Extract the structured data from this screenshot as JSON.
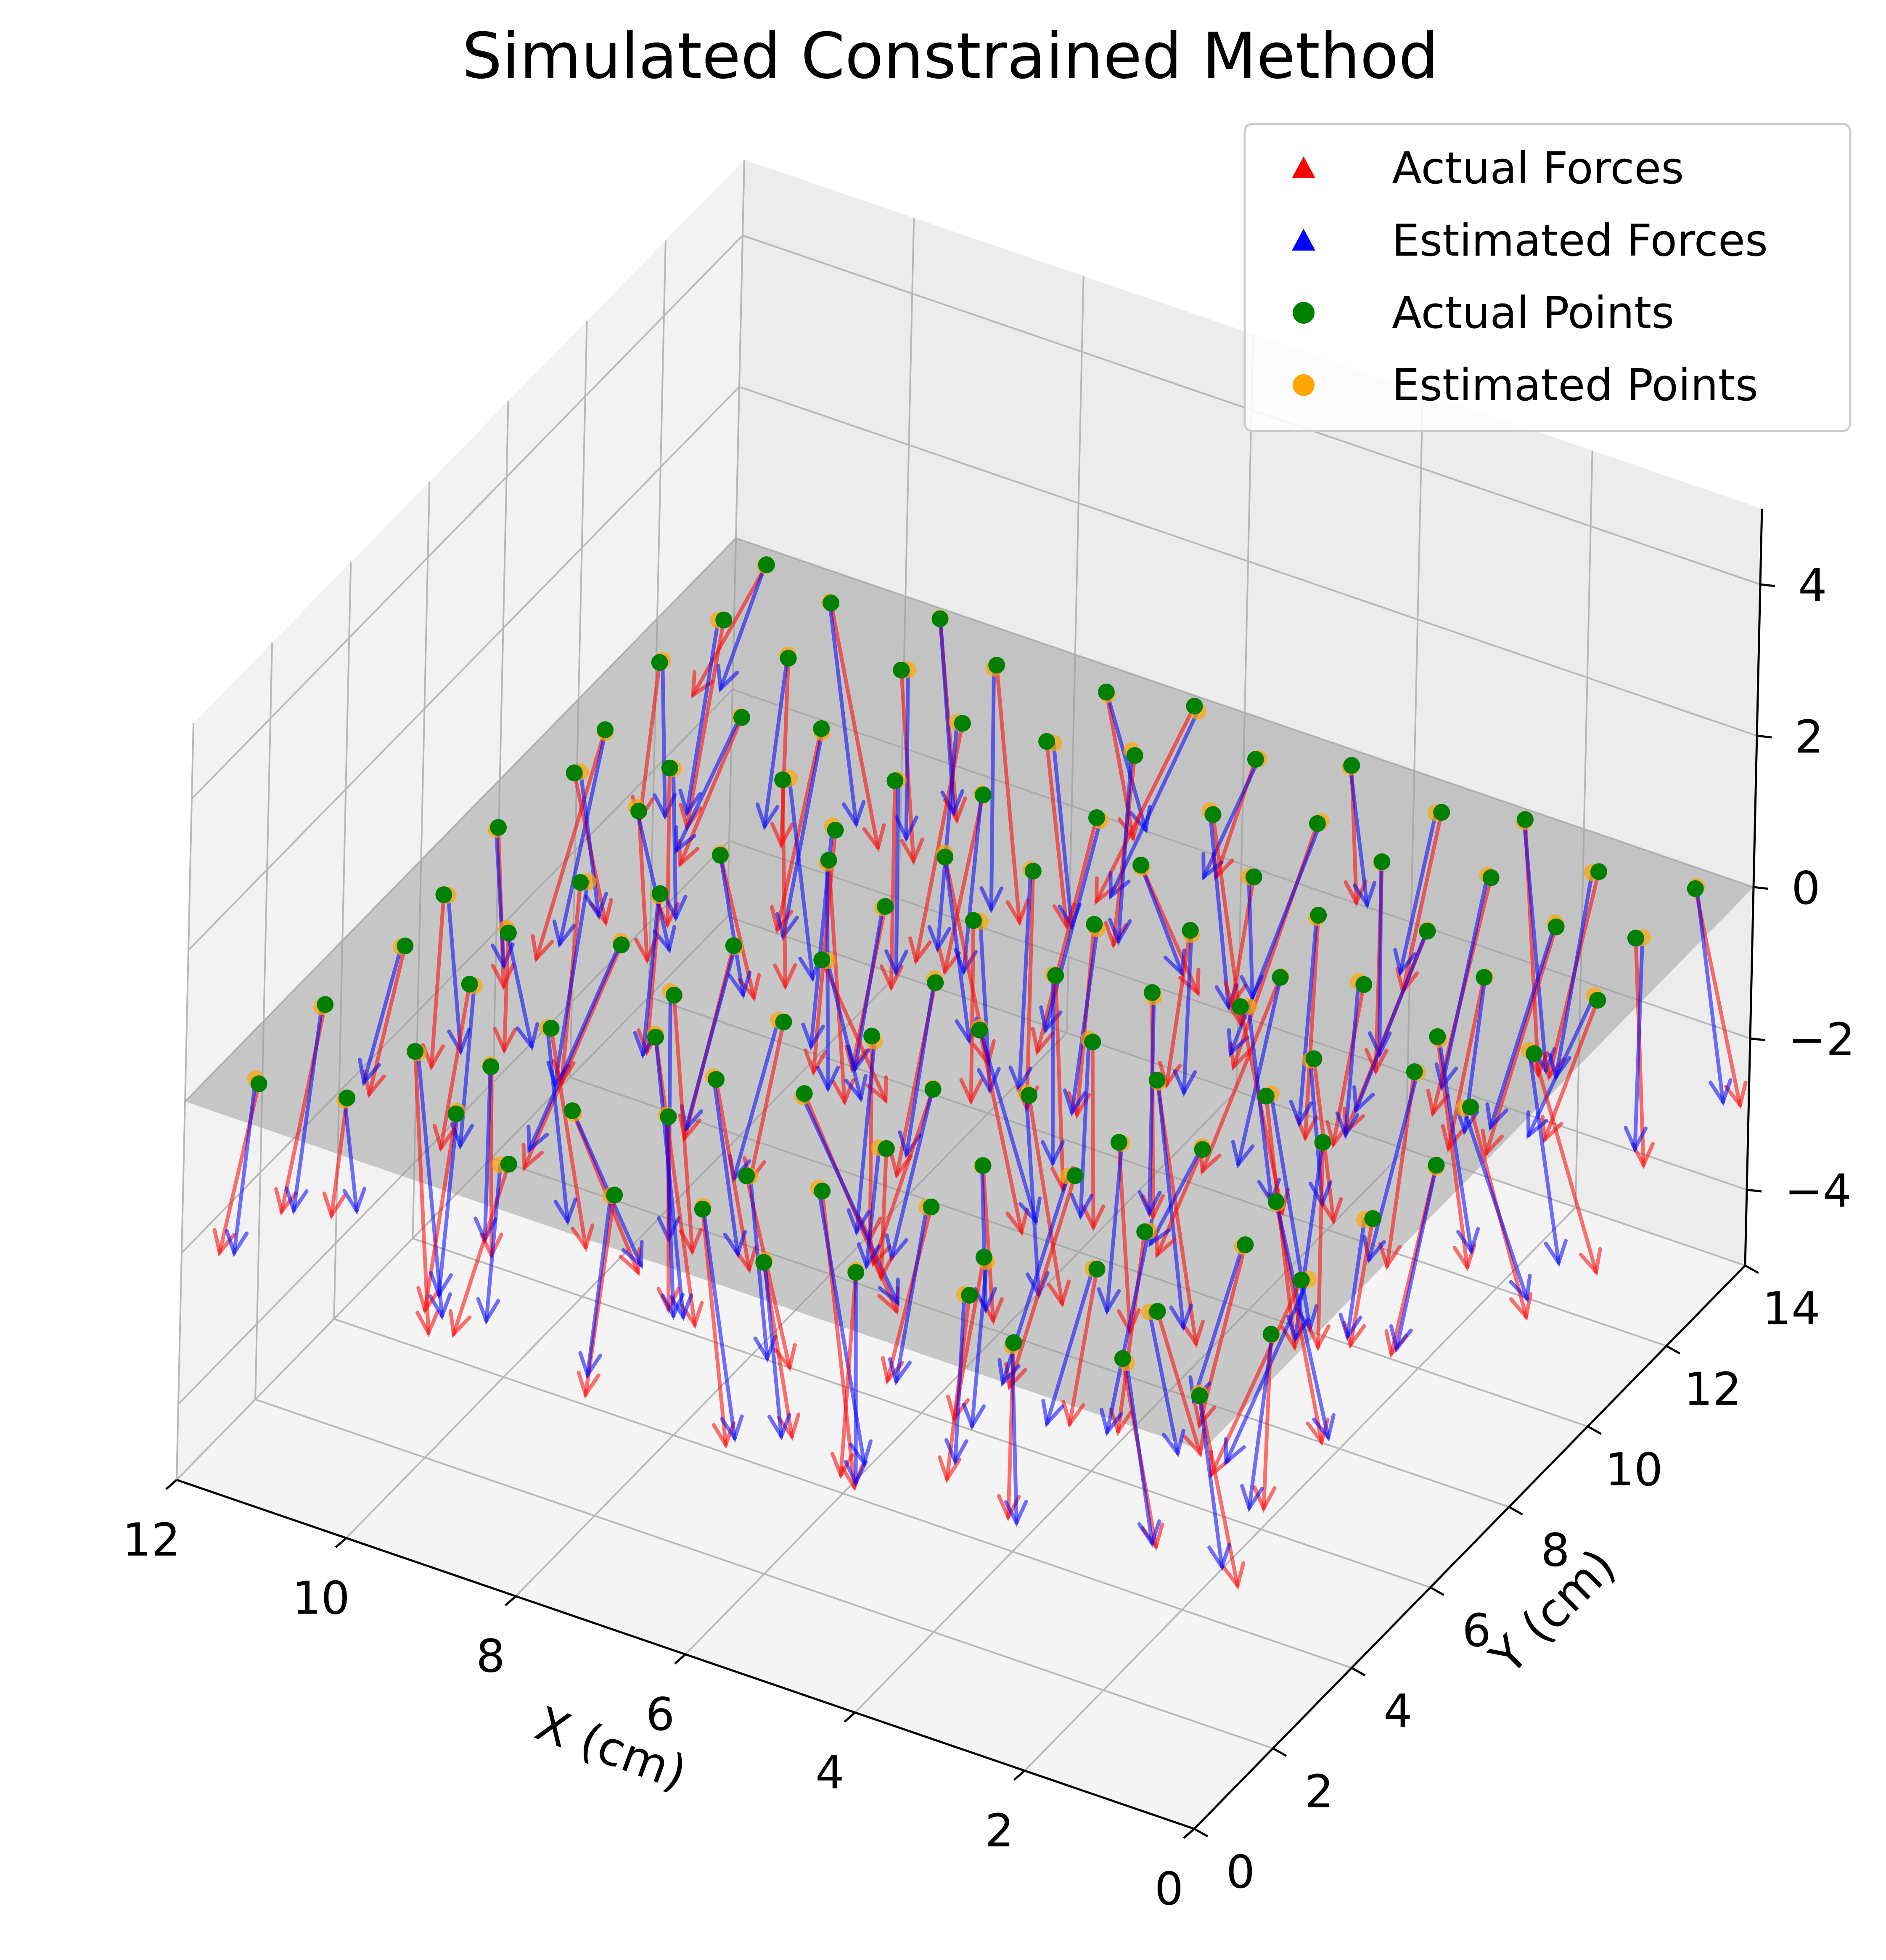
{
  "chart_data": {
    "type": "3d-quiver-scatter",
    "title": "Simulated Constrained Method",
    "xlabel": "X (cm)",
    "ylabel": "Y (cm)",
    "zlabel": "",
    "xlim": [
      0,
      12
    ],
    "ylim": [
      0,
      14
    ],
    "zlim": [
      -5,
      5
    ],
    "xticks": [
      "0",
      "2",
      "4",
      "6",
      "8",
      "10",
      "12"
    ],
    "yticks": [
      "0",
      "2",
      "4",
      "6",
      "8",
      "10",
      "12",
      "14"
    ],
    "zticks": [
      "−4",
      "−2",
      "0",
      "2",
      "4"
    ],
    "grid": true,
    "legend_position": "top-right",
    "plane_z": 0,
    "legend": [
      {
        "label": "Actual Forces",
        "marker": "triangle",
        "color": "#ff0000"
      },
      {
        "label": "Estimated Forces",
        "marker": "triangle",
        "color": "#0000ff"
      },
      {
        "label": "Actual Points",
        "marker": "circle",
        "color": "#008000"
      },
      {
        "label": "Estimated Points",
        "marker": "circle",
        "color": "#ffa500"
      }
    ],
    "series": [
      {
        "name": "Actual Forces",
        "color": "#ff0000"
      },
      {
        "name": "Estimated Forces",
        "color": "#0000ff"
      },
      {
        "name": "Actual Points",
        "color": "#008000"
      },
      {
        "name": "Estimated Points",
        "color": "#ffa500"
      }
    ],
    "points": [
      [
        0.5,
        1.0
      ],
      [
        1.5,
        1.2
      ],
      [
        2.6,
        0.8
      ],
      [
        3.4,
        1.4
      ],
      [
        4.6,
        1.1
      ],
      [
        5.5,
        0.7
      ],
      [
        6.5,
        1.3
      ],
      [
        7.4,
        1.0
      ],
      [
        8.6,
        0.9
      ],
      [
        9.5,
        1.5
      ],
      [
        10.6,
        1.1
      ],
      [
        11.5,
        0.8
      ],
      [
        0.4,
        2.6
      ],
      [
        1.6,
        2.3
      ],
      [
        2.5,
        2.7
      ],
      [
        3.6,
        2.2
      ],
      [
        4.5,
        2.8
      ],
      [
        5.6,
        2.4
      ],
      [
        6.4,
        2.2
      ],
      [
        7.6,
        2.8
      ],
      [
        8.5,
        2.3
      ],
      [
        9.6,
        2.6
      ],
      [
        10.4,
        2.4
      ],
      [
        11.6,
        2.7
      ],
      [
        0.6,
        3.8
      ],
      [
        1.4,
        4.1
      ],
      [
        2.4,
        3.7
      ],
      [
        3.5,
        4.3
      ],
      [
        4.4,
        3.9
      ],
      [
        5.4,
        3.6
      ],
      [
        6.6,
        4.1
      ],
      [
        7.5,
        3.8
      ],
      [
        8.4,
        4.2
      ],
      [
        9.4,
        3.7
      ],
      [
        10.5,
        4.0
      ],
      [
        11.4,
        4.3
      ],
      [
        0.5,
        5.4
      ],
      [
        1.5,
        5.1
      ],
      [
        2.6,
        5.6
      ],
      [
        3.4,
        5.2
      ],
      [
        4.6,
        5.5
      ],
      [
        5.5,
        5.0
      ],
      [
        6.5,
        5.6
      ],
      [
        7.4,
        5.3
      ],
      [
        8.6,
        5.1
      ],
      [
        9.5,
        5.7
      ],
      [
        10.6,
        5.2
      ],
      [
        11.5,
        5.5
      ],
      [
        0.4,
        6.8
      ],
      [
        1.6,
        6.5
      ],
      [
        2.5,
        7.0
      ],
      [
        3.6,
        6.6
      ],
      [
        4.5,
        6.9
      ],
      [
        5.6,
        6.4
      ],
      [
        6.4,
        7.0
      ],
      [
        7.6,
        6.7
      ],
      [
        8.5,
        6.4
      ],
      [
        9.6,
        6.9
      ],
      [
        10.4,
        6.6
      ],
      [
        11.6,
        7.1
      ],
      [
        0.6,
        8.1
      ],
      [
        1.4,
        8.4
      ],
      [
        2.4,
        8.0
      ],
      [
        3.5,
        8.5
      ],
      [
        4.4,
        8.2
      ],
      [
        5.4,
        7.9
      ],
      [
        6.6,
        8.4
      ],
      [
        7.5,
        8.1
      ],
      [
        8.4,
        8.6
      ],
      [
        9.4,
        8.0
      ],
      [
        10.5,
        8.3
      ],
      [
        11.4,
        8.6
      ],
      [
        0.5,
        9.5
      ],
      [
        1.5,
        9.2
      ],
      [
        2.6,
        9.7
      ],
      [
        3.4,
        9.3
      ],
      [
        4.6,
        9.6
      ],
      [
        5.5,
        9.1
      ],
      [
        6.5,
        9.7
      ],
      [
        7.4,
        9.4
      ],
      [
        8.6,
        9.2
      ],
      [
        9.5,
        9.8
      ],
      [
        10.6,
        9.3
      ],
      [
        11.5,
        9.6
      ],
      [
        0.4,
        10.9
      ],
      [
        1.6,
        10.6
      ],
      [
        2.5,
        11.1
      ],
      [
        3.6,
        10.7
      ],
      [
        4.5,
        11.0
      ],
      [
        5.6,
        10.5
      ],
      [
        6.4,
        11.1
      ],
      [
        7.6,
        10.8
      ],
      [
        8.5,
        10.5
      ],
      [
        9.6,
        11.0
      ],
      [
        10.4,
        10.7
      ],
      [
        11.6,
        11.2
      ],
      [
        0.6,
        12.3
      ],
      [
        1.4,
        12.0
      ],
      [
        2.4,
        12.5
      ],
      [
        3.5,
        12.1
      ],
      [
        4.4,
        12.4
      ],
      [
        5.4,
        11.9
      ],
      [
        6.6,
        12.5
      ],
      [
        7.5,
        12.2
      ],
      [
        8.4,
        12.0
      ],
      [
        9.4,
        12.6
      ],
      [
        10.5,
        12.1
      ],
      [
        11.4,
        12.4
      ],
      [
        0.5,
        13.6
      ],
      [
        1.5,
        13.3
      ],
      [
        2.6,
        13.8
      ],
      [
        3.4,
        13.4
      ],
      [
        4.6,
        13.7
      ],
      [
        5.5,
        13.2
      ],
      [
        6.5,
        13.8
      ],
      [
        7.4,
        13.5
      ],
      [
        8.6,
        13.3
      ],
      [
        9.5,
        13.8
      ],
      [
        10.6,
        13.4
      ],
      [
        11.5,
        13.7
      ]
    ]
  }
}
